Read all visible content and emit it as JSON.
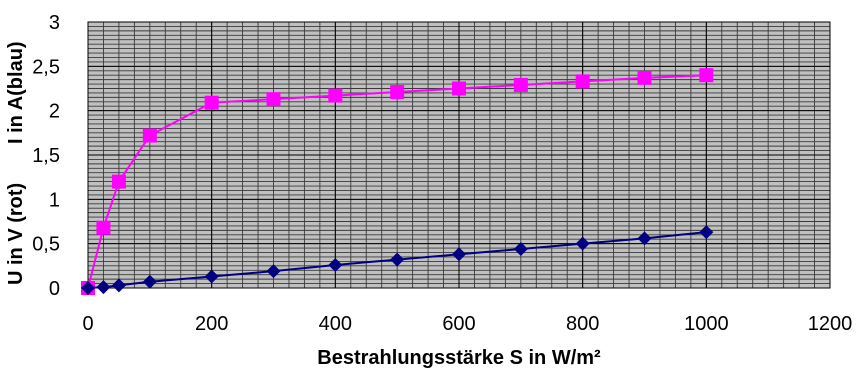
{
  "chart_data": {
    "type": "line",
    "xlabel": "Bestrahlungsstärke S in W/m²",
    "ylabel_lines": [
      "I in A(blau)",
      "U in V (rot)"
    ],
    "xlim": [
      0,
      1200
    ],
    "ylim": [
      0,
      3
    ],
    "xticks": [
      0,
      200,
      400,
      600,
      800,
      1000,
      1200
    ],
    "yticks": [
      0,
      0.5,
      1,
      1.5,
      2,
      2.5,
      3
    ],
    "ytick_labels": [
      "0",
      "0,5",
      "1",
      "1,5",
      "2",
      "2,5",
      "3"
    ],
    "grid": true,
    "grid_minor_x": 25,
    "grid_minor_y": 0.05,
    "series": [
      {
        "color": "#FF00FF",
        "marker": "square",
        "x": [
          0,
          25,
          50,
          100,
          200,
          300,
          400,
          500,
          600,
          700,
          800,
          900,
          1000
        ],
        "y": [
          0,
          0.68,
          1.2,
          1.72,
          2.09,
          2.13,
          2.17,
          2.21,
          2.25,
          2.29,
          2.33,
          2.37,
          2.4
        ]
      },
      {
        "color": "#000080",
        "marker": "diamond",
        "x": [
          0,
          25,
          50,
          100,
          200,
          300,
          400,
          500,
          600,
          700,
          800,
          900,
          1000
        ],
        "y": [
          0,
          0.01,
          0.03,
          0.07,
          0.13,
          0.19,
          0.26,
          0.32,
          0.38,
          0.44,
          0.5,
          0.56,
          0.63
        ]
      }
    ]
  }
}
